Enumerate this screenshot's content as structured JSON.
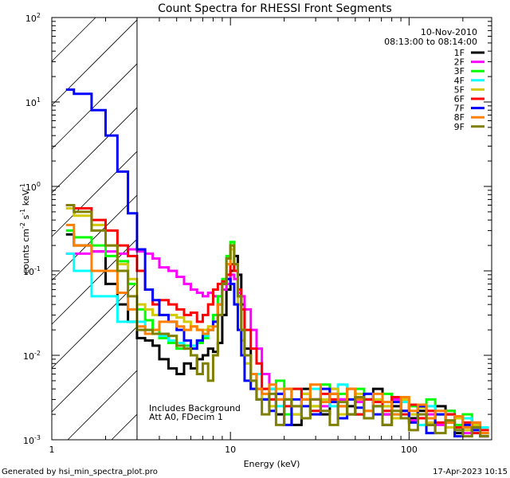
{
  "chart_data": {
    "type": "line",
    "title": "Count Spectra for RHESSI Front Segments",
    "xlabel": "Energy (keV)",
    "ylabel_base": "counts cm",
    "ylabel_parts": [
      "counts cm",
      "-2",
      " s",
      "-1",
      " keV",
      "-1"
    ],
    "xscale": "log",
    "yscale": "log",
    "xlim": [
      1,
      290
    ],
    "ylim": [
      0.001,
      100
    ],
    "x_ticks": [
      {
        "v": 1,
        "label": "1"
      },
      {
        "v": 10,
        "label": "10"
      },
      {
        "v": 100,
        "label": "100"
      }
    ],
    "y_ticks": [
      {
        "v": 0.001,
        "exp": "-3"
      },
      {
        "v": 0.01,
        "exp": "-2"
      },
      {
        "v": 0.1,
        "exp": "-1"
      },
      {
        "v": 1,
        "exp": "0"
      },
      {
        "v": 10,
        "exp": "1"
      },
      {
        "v": 100,
        "exp": "2"
      }
    ],
    "y_tick_base": "10",
    "legend_position": "top-right",
    "date": "10-Nov-2010",
    "time_range": "08:13:00 to 08:14:00",
    "shaded_region_keV": [
      1,
      3
    ],
    "annotations": [
      "Includes Background",
      "Att A0, FDecim 1"
    ],
    "energy_edges": [
      1.2,
      1.33,
      1.67,
      2.0,
      2.33,
      2.67,
      3.0,
      3.33,
      3.67,
      4,
      4.5,
      5,
      5.5,
      6,
      6.5,
      7,
      7.5,
      8,
      8.5,
      9,
      9.5,
      10,
      10.5,
      11,
      11.5,
      12,
      13,
      14,
      15,
      16.5,
      18,
      20,
      22,
      25,
      28,
      32,
      36,
      40,
      45,
      50,
      56,
      63,
      71,
      80,
      90,
      100,
      112,
      125,
      140,
      160,
      180,
      200,
      225,
      250,
      280
    ],
    "series": [
      {
        "name": "1F",
        "color": "#000000",
        "values": [
          0.27,
          0.2,
          0.17,
          0.07,
          0.04,
          0.025,
          0.016,
          0.015,
          0.013,
          0.009,
          0.007,
          0.006,
          0.008,
          0.007,
          0.009,
          0.01,
          0.012,
          0.011,
          0.014,
          0.03,
          0.06,
          0.1,
          0.15,
          0.09,
          0.04,
          0.012,
          0.006,
          0.004,
          0.003,
          0.004,
          0.002,
          0.003,
          0.0015,
          0.004,
          0.003,
          0.002,
          0.0035,
          0.003,
          0.0025,
          0.002,
          0.003,
          0.004,
          0.002,
          0.0025,
          0.003,
          0.0018,
          0.0022,
          0.0015,
          0.0025,
          0.002,
          0.0012,
          0.0018,
          0.0015,
          0.0012
        ]
      },
      {
        "name": "2F",
        "color": "#ff00ff",
        "values": [
          0.16,
          0.16,
          0.17,
          0.17,
          0.16,
          0.18,
          0.17,
          0.16,
          0.14,
          0.11,
          0.1,
          0.085,
          0.07,
          0.06,
          0.055,
          0.05,
          0.055,
          0.05,
          0.05,
          0.06,
          0.07,
          0.09,
          0.08,
          0.055,
          0.05,
          0.035,
          0.02,
          0.012,
          0.006,
          0.004,
          0.003,
          0.004,
          0.002,
          0.0035,
          0.003,
          0.0025,
          0.004,
          0.003,
          0.002,
          0.0028,
          0.0035,
          0.0025,
          0.002,
          0.003,
          0.0022,
          0.0017,
          0.0025,
          0.002,
          0.0015,
          0.0022,
          0.0018,
          0.0012,
          0.0016,
          0.0011
        ]
      },
      {
        "name": "3F",
        "color": "#00ff00",
        "values": [
          0.3,
          0.25,
          0.2,
          0.15,
          0.13,
          0.07,
          0.035,
          0.026,
          0.02,
          0.016,
          0.014,
          0.012,
          0.013,
          0.012,
          0.014,
          0.016,
          0.02,
          0.03,
          0.05,
          0.08,
          0.15,
          0.22,
          0.12,
          0.05,
          0.02,
          0.01,
          0.006,
          0.004,
          0.004,
          0.003,
          0.005,
          0.002,
          0.004,
          0.003,
          0.0025,
          0.0045,
          0.003,
          0.0035,
          0.002,
          0.004,
          0.003,
          0.0025,
          0.0035,
          0.002,
          0.003,
          0.0025,
          0.0018,
          0.003,
          0.002,
          0.0022,
          0.0015,
          0.002,
          0.0013,
          0.0012
        ]
      },
      {
        "name": "4F",
        "color": "#00ffff",
        "values": [
          0.16,
          0.1,
          0.05,
          0.05,
          0.025,
          0.025,
          0.025,
          0.02,
          0.018,
          0.017,
          0.015,
          0.014,
          0.012,
          0.013,
          0.015,
          0.017,
          0.02,
          0.025,
          0.04,
          0.07,
          0.12,
          0.2,
          0.1,
          0.04,
          0.015,
          0.008,
          0.005,
          0.006,
          0.003,
          0.004,
          0.0025,
          0.003,
          0.002,
          0.0035,
          0.004,
          0.003,
          0.0025,
          0.0045,
          0.003,
          0.002,
          0.0035,
          0.003,
          0.0025,
          0.002,
          0.0028,
          0.002,
          0.0015,
          0.0025,
          0.002,
          0.0016,
          0.0013,
          0.0018,
          0.0012,
          0.0014
        ]
      },
      {
        "name": "5F",
        "color": "#d4c800",
        "values": [
          0.55,
          0.45,
          0.35,
          0.2,
          0.12,
          0.08,
          0.04,
          0.035,
          0.03,
          0.03,
          0.03,
          0.028,
          0.025,
          0.022,
          0.02,
          0.02,
          0.022,
          0.025,
          0.04,
          0.07,
          0.12,
          0.18,
          0.1,
          0.04,
          0.015,
          0.008,
          0.004,
          0.003,
          0.0035,
          0.0025,
          0.004,
          0.003,
          0.002,
          0.0035,
          0.0025,
          0.003,
          0.004,
          0.002,
          0.003,
          0.0035,
          0.0022,
          0.003,
          0.0025,
          0.0018,
          0.003,
          0.002,
          0.0024,
          0.0016,
          0.002,
          0.0014,
          0.0018,
          0.0013,
          0.0015,
          0.0012
        ]
      },
      {
        "name": "6F",
        "color": "#ff0000",
        "values": [
          0.6,
          0.55,
          0.4,
          0.3,
          0.2,
          0.15,
          0.1,
          0.06,
          0.04,
          0.045,
          0.04,
          0.035,
          0.03,
          0.032,
          0.025,
          0.03,
          0.04,
          0.06,
          0.07,
          0.075,
          0.09,
          0.12,
          0.1,
          0.06,
          0.035,
          0.02,
          0.012,
          0.008,
          0.004,
          0.003,
          0.0035,
          0.0025,
          0.004,
          0.003,
          0.0022,
          0.0035,
          0.003,
          0.0025,
          0.004,
          0.002,
          0.003,
          0.0028,
          0.0022,
          0.0032,
          0.002,
          0.0026,
          0.0018,
          0.0022,
          0.0016,
          0.002,
          0.0014,
          0.0016,
          0.0012,
          0.0013
        ]
      },
      {
        "name": "7F",
        "color": "#0000ff",
        "values": [
          14,
          12.5,
          8,
          4,
          1.5,
          0.48,
          0.18,
          0.06,
          0.045,
          0.03,
          0.025,
          0.02,
          0.015,
          0.012,
          0.015,
          0.018,
          0.02,
          0.025,
          0.04,
          0.07,
          0.08,
          0.07,
          0.04,
          0.02,
          0.01,
          0.005,
          0.004,
          0.003,
          0.003,
          0.0022,
          0.0035,
          0.0015,
          0.003,
          0.0025,
          0.002,
          0.004,
          0.0028,
          0.0018,
          0.003,
          0.0024,
          0.0035,
          0.002,
          0.0015,
          0.0028,
          0.0022,
          0.0016,
          0.0025,
          0.0012,
          0.002,
          0.0016,
          0.0011,
          0.0015,
          0.0013,
          0.0011
        ]
      },
      {
        "name": "8F",
        "color": "#ff8000",
        "values": [
          0.35,
          0.2,
          0.1,
          0.1,
          0.055,
          0.035,
          0.022,
          0.018,
          0.02,
          0.025,
          0.025,
          0.022,
          0.02,
          0.022,
          0.02,
          0.018,
          0.02,
          0.022,
          0.04,
          0.07,
          0.12,
          0.2,
          0.12,
          0.05,
          0.02,
          0.01,
          0.006,
          0.004,
          0.0035,
          0.0045,
          0.003,
          0.004,
          0.0025,
          0.003,
          0.0045,
          0.0028,
          0.0035,
          0.0025,
          0.004,
          0.003,
          0.0022,
          0.0035,
          0.0028,
          0.002,
          0.0032,
          0.0022,
          0.0026,
          0.0018,
          0.0022,
          0.0016,
          0.0019,
          0.0014,
          0.0016,
          0.0012
        ]
      },
      {
        "name": "9F",
        "color": "#808000",
        "values": [
          0.6,
          0.5,
          0.3,
          0.2,
          0.1,
          0.05,
          0.02,
          0.02,
          0.018,
          0.018,
          0.017,
          0.013,
          0.012,
          0.01,
          0.006,
          0.008,
          0.005,
          0.01,
          0.03,
          0.07,
          0.14,
          0.2,
          0.12,
          0.05,
          0.02,
          0.01,
          0.005,
          0.003,
          0.002,
          0.0035,
          0.0015,
          0.003,
          0.0025,
          0.0018,
          0.003,
          0.0022,
          0.0015,
          0.0028,
          0.002,
          0.0032,
          0.0018,
          0.0025,
          0.0015,
          0.0022,
          0.0018,
          0.0013,
          0.002,
          0.0015,
          0.0012,
          0.0017,
          0.0013,
          0.0011,
          0.0014,
          0.0011
        ]
      }
    ]
  },
  "footer": {
    "generated_by": "Generated by hsi_min_spectra_plot.pro",
    "timestamp": "17-Apr-2023 10:15"
  }
}
